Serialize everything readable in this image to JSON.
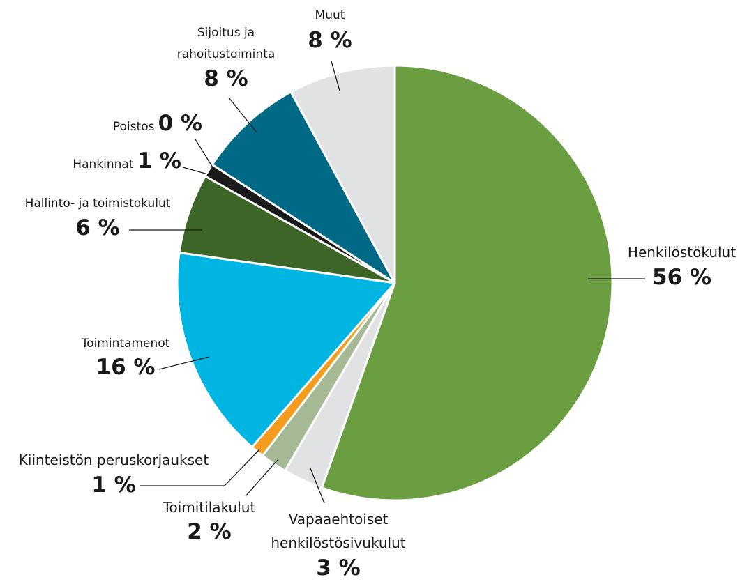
{
  "chart_data": {
    "type": "pie",
    "categories": [
      "Henkilöstökulut",
      "Vapaaehtoiset henkilöstösivukulut",
      "Toimitilakulut",
      "Kiinteistön peruskorjaukset",
      "Toimintamenot",
      "Hallinto- ja toimistokulut",
      "Hankinnat",
      "Poistos",
      "Sijoitus ja rahoitustoiminta",
      "Muut"
    ],
    "values": [
      56,
      3,
      2,
      1,
      16,
      6,
      1,
      0,
      8,
      8
    ],
    "value_labels": [
      "56 %",
      "3 %",
      "2 %",
      "1 %",
      "16 %",
      "6 %",
      "1 %",
      "0 %",
      "8 %",
      "8 %"
    ],
    "colors": [
      "#6a9e40",
      "#e1e2e4",
      "#a5b994",
      "#f39c1e",
      "#00b5e2",
      "#3c6527",
      "#1a1a1a",
      "#000000",
      "#006a86",
      "#e1e2e4"
    ]
  }
}
